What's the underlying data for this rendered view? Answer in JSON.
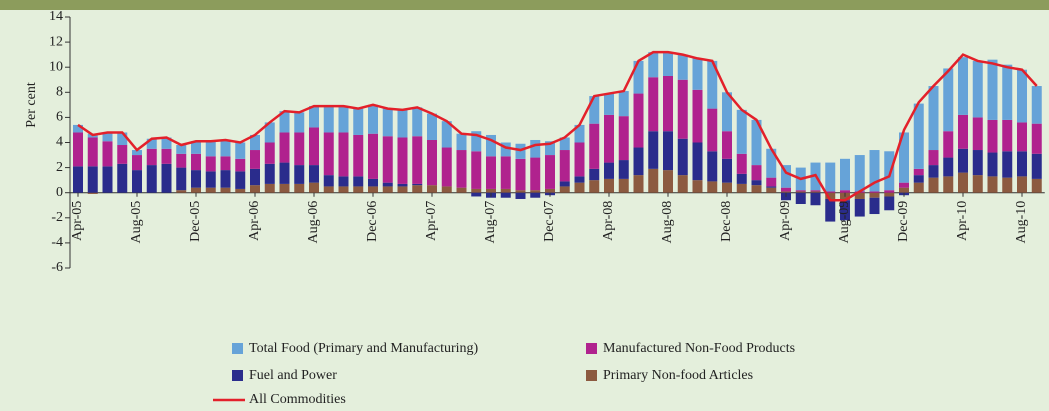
{
  "chart_data": {
    "type": "bar",
    "stacked": true,
    "y_label": "Per cent",
    "categories": [
      "Apr-05",
      null,
      null,
      null,
      "Aug-05",
      null,
      null,
      null,
      "Dec-05",
      null,
      null,
      null,
      "Apr-06",
      null,
      null,
      null,
      "Aug-06",
      null,
      null,
      null,
      "Dec-06",
      null,
      null,
      null,
      "Apr-07",
      null,
      null,
      null,
      "Aug-07",
      null,
      null,
      null,
      "Dec-07",
      null,
      null,
      null,
      "Apr-08",
      null,
      null,
      null,
      "Aug-08",
      null,
      null,
      null,
      "Dec-08",
      null,
      null,
      null,
      "Apr-09",
      null,
      null,
      null,
      "Aug-09",
      null,
      null,
      null,
      "Dec-09",
      null,
      null,
      null,
      "Apr-10",
      null,
      null,
      null,
      "Aug-10",
      null
    ],
    "series": [
      {
        "name": "Primary Non-food Articles",
        "color": "#8c5a40",
        "values": [
          0,
          -0.1,
          0,
          0,
          0,
          0,
          0,
          0.2,
          0.4,
          0.4,
          0.4,
          0.3,
          0.6,
          0.7,
          0.7,
          0.7,
          0.8,
          0.5,
          0.5,
          0.5,
          0.5,
          0.5,
          0.5,
          0.6,
          0.6,
          0.5,
          0.4,
          0.3,
          0.3,
          0.3,
          0.2,
          0.2,
          0.3,
          0.5,
          0.8,
          1.0,
          1.1,
          1.1,
          1.4,
          1.9,
          1.8,
          1.4,
          1.0,
          0.9,
          0.8,
          0.7,
          0.6,
          0.4,
          0.1,
          0.1,
          0.1,
          -0.5,
          -0.6,
          -0.5,
          -0.4,
          -0.3,
          0.4,
          0.8,
          1.2,
          1.3,
          1.6,
          1.4,
          1.3,
          1.2,
          1.3,
          1.1
        ]
      },
      {
        "name": "Fuel and Power",
        "color": "#2a2c8c",
        "values": [
          2.1,
          2.1,
          2.1,
          2.3,
          1.8,
          2.2,
          2.3,
          1.8,
          1.4,
          1.3,
          1.4,
          1.4,
          1.3,
          1.6,
          1.7,
          1.5,
          1.4,
          0.9,
          0.8,
          0.8,
          0.6,
          0.3,
          0.2,
          0.1,
          0,
          0,
          0,
          -0.3,
          -0.4,
          -0.4,
          -0.5,
          -0.4,
          -0.2,
          0.4,
          0.5,
          0.9,
          1.3,
          1.5,
          2.2,
          3.0,
          3.1,
          2.9,
          3.0,
          2.4,
          1.9,
          0.8,
          0.4,
          0.1,
          -0.6,
          -0.9,
          -1.0,
          -1.8,
          -1.6,
          -1.4,
          -1.3,
          -1.1,
          -0.2,
          0.6,
          1.0,
          1.5,
          1.9,
          2.0,
          1.9,
          2.1,
          2.0,
          2.0
        ]
      },
      {
        "name": "Manufactured Non-Food Products",
        "color": "#b0228e",
        "values": [
          2.7,
          2.3,
          2.0,
          1.5,
          1.2,
          1.3,
          1.2,
          1.1,
          1.3,
          1.2,
          1.1,
          1.0,
          1.5,
          1.7,
          2.4,
          2.6,
          3.0,
          3.4,
          3.5,
          3.3,
          3.6,
          3.7,
          3.7,
          3.8,
          3.6,
          3.1,
          3.0,
          3.0,
          2.6,
          2.6,
          2.5,
          2.6,
          2.7,
          2.5,
          2.7,
          3.6,
          3.8,
          3.5,
          4.3,
          4.3,
          4.4,
          4.7,
          4.2,
          3.4,
          2.2,
          1.6,
          1.2,
          0.7,
          0.3,
          0.1,
          0.1,
          0.1,
          0.2,
          0.1,
          0.1,
          0.2,
          0.4,
          0.5,
          1.2,
          2.1,
          2.7,
          2.6,
          2.6,
          2.5,
          2.3,
          2.4
        ]
      },
      {
        "name": "Total Food (Primary and Manufacturing)",
        "color": "#66a3d8",
        "values": [
          0.6,
          0.3,
          0.7,
          1.0,
          0.4,
          0.8,
          0.9,
          0.7,
          1.0,
          1.2,
          1.3,
          1.3,
          1.2,
          1.6,
          1.7,
          1.6,
          1.7,
          2.1,
          2.1,
          2.1,
          2.3,
          2.2,
          2.2,
          2.3,
          2.1,
          2.1,
          1.3,
          1.6,
          1.7,
          1.1,
          1.2,
          1.4,
          1.1,
          1.0,
          1.4,
          2.2,
          1.7,
          2.0,
          2.6,
          2.0,
          1.9,
          2.0,
          2.5,
          3.8,
          3.1,
          3.5,
          3.6,
          2.3,
          1.8,
          1.8,
          2.2,
          2.3,
          2.5,
          2.9,
          3.3,
          3.1,
          4.0,
          5.2,
          5.1,
          5.0,
          4.6,
          4.5,
          4.8,
          4.4,
          4.2,
          3.0
        ]
      }
    ],
    "line": {
      "name": "All Commodities",
      "color": "#e3202a",
      "values": [
        5.4,
        4.6,
        4.8,
        4.8,
        3.4,
        4.3,
        4.4,
        3.8,
        4.1,
        4.1,
        4.2,
        4.0,
        4.6,
        5.6,
        6.5,
        6.4,
        6.9,
        6.9,
        6.9,
        6.7,
        7.0,
        6.7,
        6.6,
        6.8,
        6.3,
        5.7,
        4.7,
        4.6,
        4.2,
        3.6,
        3.4,
        3.8,
        3.9,
        4.4,
        5.4,
        7.7,
        7.9,
        8.1,
        10.5,
        11.2,
        11.2,
        11.0,
        10.7,
        10.5,
        8.0,
        6.6,
        5.8,
        3.5,
        1.6,
        1.1,
        1.4,
        -0.6,
        -0.6,
        0.1,
        0.8,
        1.3,
        5.0,
        7.2,
        8.5,
        9.7,
        11.0,
        10.5,
        10.3,
        10.0,
        9.8,
        8.5
      ]
    },
    "ylim": [
      -6,
      14
    ],
    "yticks": [
      -6,
      -4,
      -2,
      0,
      2,
      4,
      6,
      8,
      10,
      12,
      14
    ],
    "grid": false
  }
}
